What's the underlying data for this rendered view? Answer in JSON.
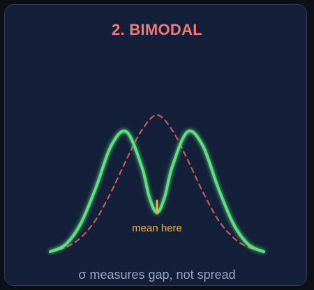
{
  "panel": {
    "title": "2. BIMODAL",
    "caption": "σ measures gap, not spread"
  },
  "colors": {
    "background": "#0d1117",
    "card": "#142039",
    "title": "#f07878",
    "bimodal_curve": "#5fe07e",
    "normal_curve": "#c45a5e",
    "mean_marker": "#f1b24a",
    "caption": "#9aa6bd"
  },
  "chart_data": {
    "type": "line",
    "title": "2. BIMODAL",
    "xlabel": "",
    "ylabel": "",
    "grid": false,
    "legend": "none",
    "x_range": [
      -4,
      4
    ],
    "y_range": [
      0,
      1
    ],
    "series": [
      {
        "style": "solid",
        "color": "#5fe07e",
        "x": [
          -3.5,
          -3.0,
          -2.5,
          -2.0,
          -1.5,
          -1.0,
          -0.5,
          -0.25,
          0.0,
          0.25,
          0.5,
          1.0,
          1.5,
          2.0,
          2.5,
          3.0,
          3.5
        ],
        "y": [
          0.02,
          0.07,
          0.22,
          0.48,
          0.78,
          0.88,
          0.63,
          0.41,
          0.3,
          0.41,
          0.63,
          0.88,
          0.78,
          0.48,
          0.22,
          0.07,
          0.02
        ]
      },
      {
        "style": "dashed",
        "color": "#c45a5e",
        "x": [
          -3.5,
          -3.0,
          -2.5,
          -2.0,
          -1.5,
          -1.0,
          -0.5,
          0.0,
          0.5,
          1.0,
          1.5,
          2.0,
          2.5,
          3.0,
          3.5
        ],
        "y": [
          0.02,
          0.05,
          0.12,
          0.25,
          0.45,
          0.68,
          0.89,
          1.0,
          0.89,
          0.68,
          0.45,
          0.25,
          0.12,
          0.05,
          0.02
        ]
      }
    ],
    "annotations": [
      {
        "text": "mean here",
        "x": 0,
        "y": 0.3,
        "color": "#f1b24a"
      }
    ]
  }
}
